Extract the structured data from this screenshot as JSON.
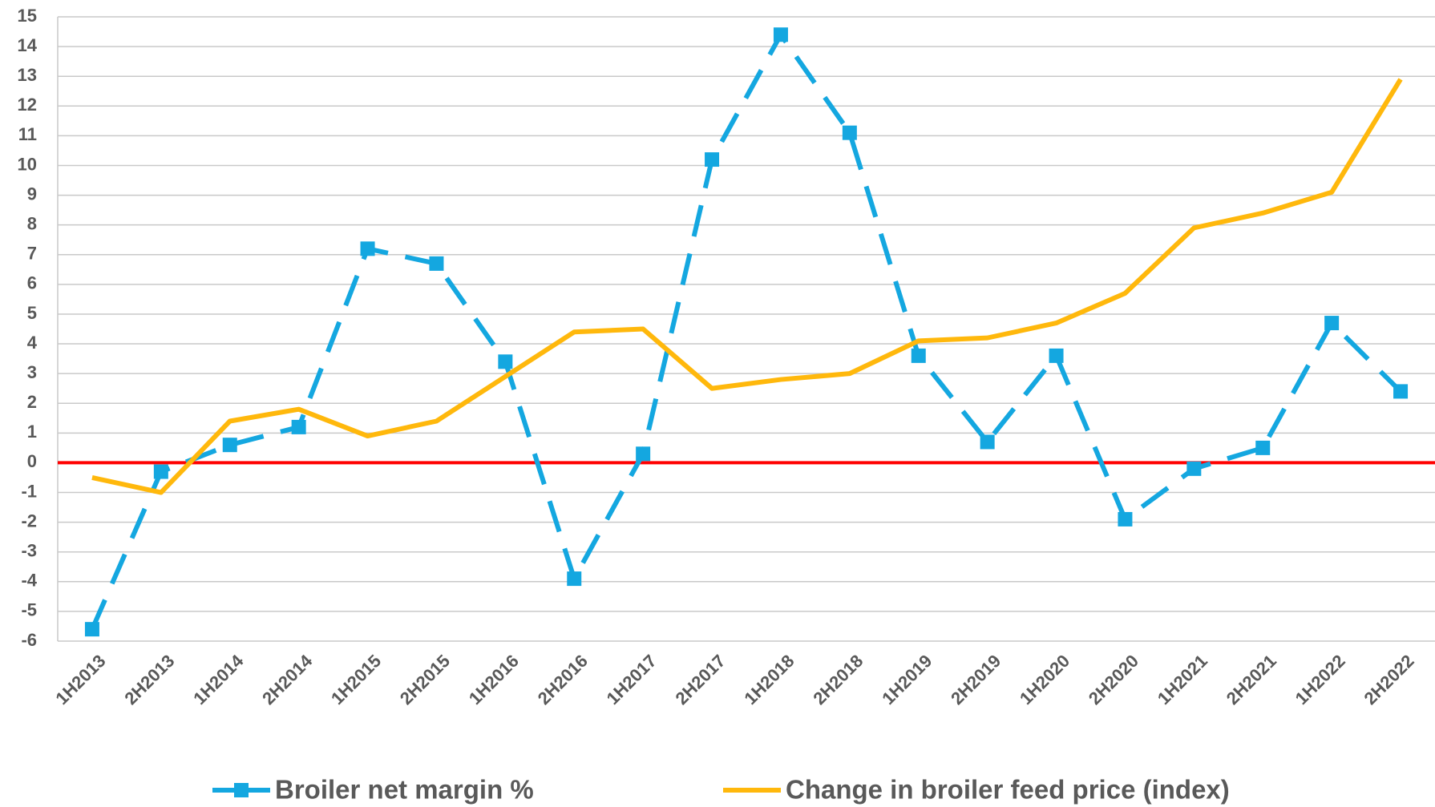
{
  "chart_data": {
    "type": "line",
    "categories": [
      "1H2013",
      "2H2013",
      "1H2014",
      "2H2014",
      "1H2015",
      "2H2015",
      "1H2016",
      "2H2016",
      "1H2017",
      "2H2017",
      "1H2018",
      "2H2018",
      "1H2019",
      "2H2019",
      "1H2020",
      "2H2020",
      "1H2021",
      "2H2021",
      "1H2022",
      "2H2022"
    ],
    "series": [
      {
        "name": "Broiler net margin %",
        "color": "#14a7e0",
        "dashed": true,
        "marker": "square",
        "values": [
          -5.6,
          -0.3,
          0.6,
          1.2,
          7.2,
          6.7,
          3.4,
          -3.9,
          0.3,
          10.2,
          14.4,
          11.1,
          3.6,
          0.7,
          3.6,
          -1.9,
          -0.2,
          0.5,
          4.7,
          2.4
        ]
      },
      {
        "name": "Change in broiler feed price (index)",
        "color": "#ffb80c",
        "dashed": false,
        "values": [
          -0.5,
          -1.0,
          1.4,
          1.8,
          0.9,
          1.4,
          2.9,
          4.4,
          4.5,
          2.5,
          2.8,
          3.0,
          4.1,
          4.2,
          4.7,
          5.7,
          7.9,
          8.4,
          9.1,
          12.9
        ]
      }
    ],
    "ylim": [
      -6,
      15
    ],
    "yticks": [
      -6,
      -5,
      -4,
      -3,
      -2,
      -1,
      0,
      1,
      2,
      3,
      4,
      5,
      6,
      7,
      8,
      9,
      10,
      11,
      12,
      13,
      14,
      15
    ],
    "grid": true,
    "reference_line": {
      "value": 0,
      "color": "#ff0000"
    },
    "legend": "bottom"
  }
}
